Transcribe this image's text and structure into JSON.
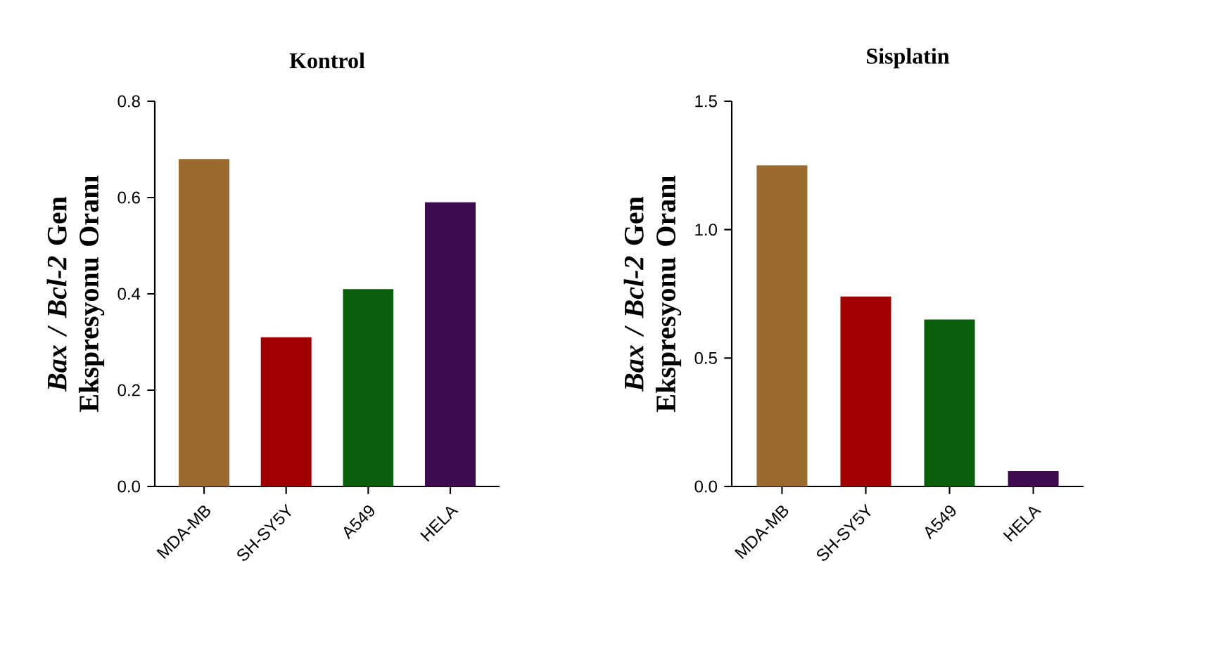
{
  "chart_data": [
    {
      "type": "bar",
      "title": "Kontrol",
      "ylabel": "*Bax / Bcl-2* Gen Ekspresyonu Oranı",
      "categories": [
        "MDA-MB",
        "SH-SY5Y",
        "A549",
        "HELA"
      ],
      "values": [
        0.68,
        0.31,
        0.41,
        0.59
      ],
      "colors": [
        "#9a6a2e",
        "#a00000",
        "#0b5e0b",
        "#3e0a50"
      ],
      "ylim": [
        0,
        0.8
      ],
      "yticks": [
        {
          "value": 0,
          "label": "0.0"
        },
        {
          "value": 0.2,
          "label": "0.2"
        },
        {
          "value": 0.4,
          "label": "0.4"
        },
        {
          "value": 0.6,
          "label": "0.6"
        },
        {
          "value": 0.8,
          "label": "0.8"
        }
      ]
    },
    {
      "type": "bar",
      "title": "Sisplatin",
      "ylabel": "*Bax / Bcl-2* Gen Ekspresyonu Oranı",
      "categories": [
        "MDA-MB",
        "SH-SY5Y",
        "A549",
        "HELA"
      ],
      "values": [
        1.25,
        0.74,
        0.65,
        0.06
      ],
      "colors": [
        "#9a6a2e",
        "#a00000",
        "#0b5e0b",
        "#3e0a50"
      ],
      "ylim": [
        0,
        1.5
      ],
      "yticks": [
        {
          "value": 0,
          "label": "0.0"
        },
        {
          "value": 0.5,
          "label": "0.5"
        },
        {
          "value": 1.0,
          "label": "1.0"
        },
        {
          "value": 1.5,
          "label": "1.5"
        }
      ]
    }
  ]
}
